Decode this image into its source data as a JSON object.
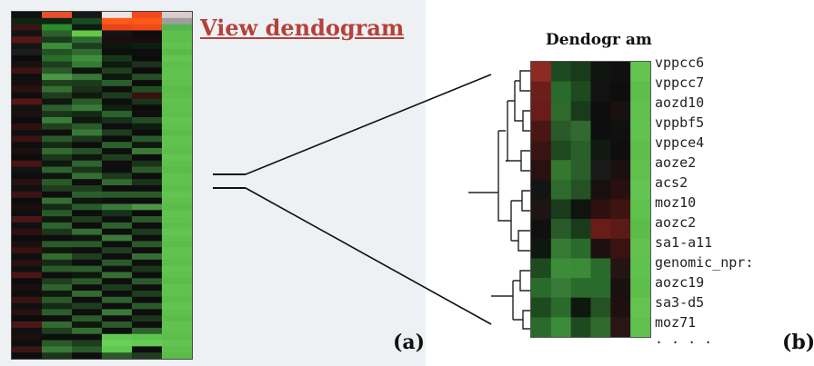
{
  "panel_a": {
    "link_text": "View dendogram",
    "label": "(a)",
    "heatmap": {
      "columns": 6,
      "rows": [
        [
          "#101010",
          "#e8502c",
          "#181818",
          "#ece4e4",
          "#f04a20",
          "#d8cccc"
        ],
        [
          "#0e2412",
          "#0e2412",
          "#1c4a22",
          "#ff5a1a",
          "#ff5a1a",
          "#9e9e9e"
        ],
        [
          "#3a1414",
          "#2a8c2a",
          "#0e1c10",
          "#e84418",
          "#f04a18",
          "#54b450"
        ],
        [
          "#141414",
          "#2e5e2e",
          "#64c848",
          "#141414",
          "#0e0e0e",
          "#60c04c"
        ],
        [
          "#5a1616",
          "#1a3a1c",
          "#2e6a2e",
          "#1c0e0e",
          "#180c0c",
          "#5ebe4e"
        ],
        [
          "#141414",
          "#3c8c3a",
          "#1e3e20",
          "#0c160c",
          "#0c1e0e",
          "#62c24e"
        ],
        [
          "#1c1c1c",
          "#245224",
          "#306a30",
          "#0e0e0e",
          "#0e0e0e",
          "#5cba4a"
        ],
        [
          "#0c0c0c",
          "#2a6c2a",
          "#3e8e3a",
          "#1a361a",
          "#0c0c0c",
          "#64c450"
        ],
        [
          "#1a1010",
          "#1e3e1e",
          "#347c34",
          "#0e1a0e",
          "#1c301c",
          "#5ec04c"
        ],
        [
          "#3c1414",
          "#2c5a2c",
          "#0c140c",
          "#203e20",
          "#0c0c0c",
          "#60c24e"
        ],
        [
          "#0e0e0e",
          "#4a9646",
          "#3a7436",
          "#0e180e",
          "#244e24",
          "#62c250"
        ],
        [
          "#180e0e",
          "#1e3e1e",
          "#1c3a1c",
          "#2a5e2a",
          "#0e0e0e",
          "#60c04e"
        ],
        [
          "#2c1010",
          "#356e33",
          "#1a2e1a",
          "#0e0e0e",
          "#205020",
          "#5cbc4a"
        ],
        [
          "#0e0e0e",
          "#203c20",
          "#0e1a0e",
          "#1c3a1c",
          "#3a1010",
          "#5ebe4c"
        ],
        [
          "#561616",
          "#0e180e",
          "#2a5a2a",
          "#0e0e0e",
          "#1a341a",
          "#62c250"
        ],
        [
          "#121212",
          "#2e5e2e",
          "#3a7a38",
          "#10220f",
          "#0c0c0c",
          "#60c04e"
        ],
        [
          "#1a1010",
          "#1a341a",
          "#152a15",
          "#2c622c",
          "#0e0e0e",
          "#5ec04c"
        ],
        [
          "#0c0c0c",
          "#3c7c3a",
          "#0e180e",
          "#16301a",
          "#244c24",
          "#64c452"
        ],
        [
          "#2e1010",
          "#204020",
          "#2a5a2a",
          "#0e0e0e",
          "#0e1e0e",
          "#60c24e"
        ],
        [
          "#101010",
          "#0e0e0e",
          "#3a7838",
          "#1e3c1e",
          "#0c0c0c",
          "#5cbc4a"
        ],
        [
          "#3a1212",
          "#2a5a2a",
          "#1c361c",
          "#0c0c0c",
          "#2a5a2a",
          "#62c250"
        ],
        [
          "#0e0e0e",
          "#152a15",
          "#0e0e0e",
          "#2c602c",
          "#0e180e",
          "#60c24e"
        ],
        [
          "#1c0e0e",
          "#326a30",
          "#26502a",
          "#0e0e0e",
          "#3a7a38",
          "#5ebe4c"
        ],
        [
          "#0c0c0c",
          "#1c361c",
          "#0e160e",
          "#1e401e",
          "#0c0c0c",
          "#64c452"
        ],
        [
          "#4a1414",
          "#0e180e",
          "#2e622e",
          "#0e0e0e",
          "#1a341a",
          "#60c04e"
        ],
        [
          "#121212",
          "#2e622e",
          "#1a341a",
          "#0e0e0e",
          "#2a5a2a",
          "#5cbc4a"
        ],
        [
          "#0e0e0e",
          "#0e160e",
          "#346e32",
          "#1c3a1c",
          "#0e0e0e",
          "#62c250"
        ],
        [
          "#2a1010",
          "#2a5a2a",
          "#0e0e0e",
          "#326a30",
          "#1a341a",
          "#60c24e"
        ],
        [
          "#101010",
          "#1e3e1e",
          "#1e3e1e",
          "#0e0e0e",
          "#0e0e0e",
          "#5ebe4c"
        ],
        [
          "#3c1414",
          "#0e0e0e",
          "#2c5e2c",
          "#2a5a2a",
          "#2a5a2a",
          "#64c452"
        ],
        [
          "#0c0c0c",
          "#356e33",
          "#0e180e",
          "#0e0e0e",
          "#0e0e0e",
          "#60c04e"
        ],
        [
          "#1a0e0e",
          "#152a15",
          "#2a5a2a",
          "#3a7a38",
          "#4a9646",
          "#5cbc4a"
        ],
        [
          "#0e0e0e",
          "#2a5a2a",
          "#0e0e0e",
          "#16301a",
          "#0c0c0c",
          "#62c250"
        ],
        [
          "#4a1616",
          "#0e180e",
          "#1e3e1e",
          "#0e0e0e",
          "#2a5a2a",
          "#60c24e"
        ],
        [
          "#101010",
          "#2e622e",
          "#0e0e0e",
          "#2e622e",
          "#0e0e0e",
          "#5ebe4c"
        ],
        [
          "#2e1010",
          "#1c361c",
          "#346e32",
          "#0e0e0e",
          "#1c3a1c",
          "#64c452"
        ],
        [
          "#0c0c0c",
          "#0e0e0e",
          "#0e160e",
          "#3a7a38",
          "#0e0e0e",
          "#60c04e"
        ],
        [
          "#1a1010",
          "#2a5a2a",
          "#2a5a2a",
          "#0e0e0e",
          "#2a5a2a",
          "#5cbc4a"
        ],
        [
          "#3a1212",
          "#0e180e",
          "#0e0e0e",
          "#1e3e1e",
          "#0e0e0e",
          "#62c250"
        ],
        [
          "#0e0e0e",
          "#326a30",
          "#1e3e1e",
          "#0e0e0e",
          "#356e33",
          "#60c24e"
        ],
        [
          "#2c1010",
          "#152a15",
          "#0e0e0e",
          "#2a5a2a",
          "#0e0e0e",
          "#5ebe4c"
        ],
        [
          "#101010",
          "#2a5a2a",
          "#2c5e2c",
          "#0e0e0e",
          "#1c361c",
          "#64c452"
        ],
        [
          "#4c1414",
          "#0e0e0e",
          "#0e160e",
          "#346e32",
          "#0e0e0e",
          "#60c04e"
        ],
        [
          "#0c0c0c",
          "#1e3e1e",
          "#2a5a2a",
          "#0e0e0e",
          "#2a5a2a",
          "#5cbc4a"
        ],
        [
          "#1c0e0e",
          "#2e622e",
          "#0e0e0e",
          "#1c3a1c",
          "#0e0e0e",
          "#62c250"
        ],
        [
          "#0e0e0e",
          "#0e180e",
          "#326a30",
          "#0e0e0e",
          "#1e3e1e",
          "#60c24e"
        ],
        [
          "#3a1212",
          "#2a5a2a",
          "#0e0e0e",
          "#2e622e",
          "#0e0e0e",
          "#5ebe4c"
        ],
        [
          "#101010",
          "#152a15",
          "#1e3e1e",
          "#0e0e0e",
          "#2a5a2a",
          "#64c452"
        ],
        [
          "#2a1010",
          "#2c5e2c",
          "#0e0e0e",
          "#3a7a38",
          "#0e0e0e",
          "#60c04e"
        ],
        [
          "#0c0c0c",
          "#0e0e0e",
          "#2a5a2a",
          "#0e0e0e",
          "#1c361c",
          "#5cbc4a"
        ],
        [
          "#4a1616",
          "#326a30",
          "#0e160e",
          "#2a5a2a",
          "#0e0e0e",
          "#62c250"
        ],
        [
          "#101010",
          "#1e3e1e",
          "#346e32",
          "#0e0e0e",
          "#2e622e",
          "#60c24e"
        ],
        [
          "#1c0e0e",
          "#0e0e0e",
          "#0e0e0e",
          "#60c850",
          "#5cc44c",
          "#5ebe4c"
        ],
        [
          "#0e0e0e",
          "#2a5a2a",
          "#1e3e1e",
          "#6ad058",
          "#64cc52",
          "#64c452"
        ],
        [
          "#3c1414",
          "#3a7a38",
          "#2a5a2a",
          "#5ec84e",
          "#0e0e0e",
          "#60c04e"
        ],
        [
          "#0c0c0c",
          "#1c361c",
          "#0e0e0e",
          "#2a5a2a",
          "#1e3e1e",
          "#5cbc4a"
        ]
      ]
    }
  },
  "panel_b": {
    "title": "Dendogr am",
    "label": "(b)",
    "gene_labels": [
      "vppcc6",
      "vppcc7",
      "aozd10",
      "vppbf5",
      "vppce4",
      "aoze2",
      "acs2",
      "moz10",
      "aozc2",
      "sa1-a11",
      "genomic_npr:",
      "aozc19",
      "sa3-d5",
      "moz71",
      "· · · ·"
    ],
    "heatmap": {
      "columns": 6,
      "rows": [
        [
          "#8e2a22",
          "#1e4a22",
          "#1a3a1c",
          "#0e140e",
          "#101010",
          "#64c450"
        ],
        [
          "#6e1e1a",
          "#2a6a2a",
          "#1e4a20",
          "#121212",
          "#0e0e0e",
          "#5ebe4c"
        ],
        [
          "#6a1c18",
          "#2e6a2c",
          "#1a3a1c",
          "#0e0e0e",
          "#1a1010",
          "#60c04e"
        ],
        [
          "#4a1614",
          "#2a5a2a",
          "#306a30",
          "#0e0e0e",
          "#101010",
          "#62c250"
        ],
        [
          "#3a1412",
          "#1e4a20",
          "#2a5e2a",
          "#101a10",
          "#0e0e0e",
          "#5ebe4c"
        ],
        [
          "#2a1010",
          "#34782f",
          "#2a5e2a",
          "#1a1a1a",
          "#1a1010",
          "#60c04e"
        ],
        [
          "#141414",
          "#2e6a2c",
          "#245224",
          "#181010",
          "#281010",
          "#64c452"
        ],
        [
          "#1e1414",
          "#1a3a1c",
          "#0e140e",
          "#2e1010",
          "#3e1410",
          "#60c24e"
        ],
        [
          "#101010",
          "#2a5a2a",
          "#1a3a1c",
          "#6a1c18",
          "#5a1a16",
          "#5cbc4a"
        ],
        [
          "#0e180e",
          "#357a33",
          "#2a6a2a",
          "#1e1010",
          "#3a1210",
          "#62c250"
        ],
        [
          "#1e4a20",
          "#3c8c3a",
          "#3a8a38",
          "#2a6a2a",
          "#241414",
          "#60c24e"
        ],
        [
          "#2a6a2a",
          "#3a7a38",
          "#2a6a2a",
          "#2a6a2a",
          "#1a1010",
          "#5ebe4c"
        ],
        [
          "#1e4a20",
          "#2a6a2a",
          "#0e180e",
          "#245224",
          "#1e1010",
          "#64c452"
        ],
        [
          "#2a6a2a",
          "#3a8a38",
          "#1e4a20",
          "#2e6a2c",
          "#2a1414",
          "#60c04e"
        ]
      ]
    }
  }
}
